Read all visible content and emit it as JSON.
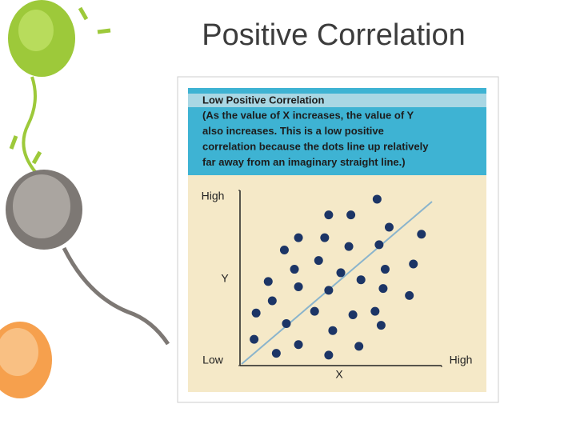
{
  "slide": {
    "title": "Positive Correlation"
  },
  "chart_data": {
    "type": "scatter",
    "title": "Low Positive Correlation",
    "description": [
      "(As the value of X increases, the value of Y",
      "also increases. This is a low positive",
      "correlation because the dots line up relatively",
      "far away from an imaginary straight line.)"
    ],
    "x_label": "X",
    "y_label": "Y",
    "xlim": [
      0,
      10
    ],
    "ylim": [
      0,
      10
    ],
    "xticks": [
      {
        "value": 10,
        "label": "High"
      }
    ],
    "yticks": [
      {
        "value": 0,
        "label": "Low"
      },
      {
        "value": 10,
        "label": "High"
      }
    ],
    "color": "#1c3566",
    "x": [
      6.8,
      4.4,
      5.5,
      7.4,
      9.0,
      2.9,
      4.2,
      2.2,
      5.4,
      6.9,
      3.9,
      2.7,
      5.0,
      7.2,
      8.6,
      1.4,
      2.9,
      6.0,
      7.1,
      1.6,
      4.4,
      8.4,
      0.8,
      3.7,
      5.6,
      6.7,
      2.3,
      7.0,
      0.7,
      4.6,
      2.9,
      1.8,
      5.9,
      4.4
    ],
    "values": [
      9.5,
      8.6,
      8.6,
      7.9,
      7.5,
      7.3,
      7.3,
      6.6,
      6.8,
      6.9,
      6.0,
      5.5,
      5.3,
      5.5,
      5.8,
      4.8,
      4.5,
      4.9,
      4.4,
      3.7,
      4.3,
      4.0,
      3.0,
      3.1,
      2.9,
      3.1,
      2.4,
      2.3,
      1.5,
      2.0,
      1.2,
      0.7,
      1.1,
      0.6
    ]
  }
}
